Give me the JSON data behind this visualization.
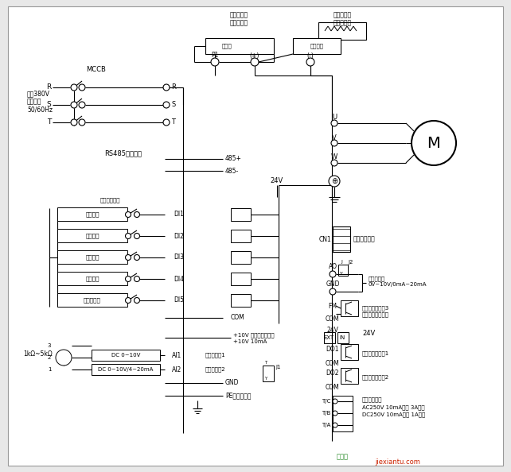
{
  "bg_color": "#e8e8e8",
  "white": "#ffffff",
  "black": "#000000",
  "gray": "#999999",
  "light_gray": "#f0f0f0",
  "red": "#cc0000",
  "border_gray": "#bbbbbb",
  "labels": {
    "mccb": "MCCB",
    "three_phase": "三相380V\n输入电源\n50/60Hz",
    "r": "R",
    "s": "S",
    "t": "T",
    "rs485": "RS485通讯接口",
    "485p": "485+",
    "485n": "485-",
    "24v": "24V",
    "factory": "（出厂默认）",
    "fwd_run": "正转运行",
    "rev_run": "反转运行",
    "fwd_jog": "正转点动",
    "free_stop": "自由停车",
    "hi_pulse": "高速脉冲入",
    "di1": "DI1",
    "di2": "DI2",
    "di3": "DI3",
    "di4": "DI4",
    "di5": "DI5",
    "com": "COM",
    "plus10v_a": "+10V 频率设定用电源",
    "plus10v_b": "+10V 10mA",
    "dc010v": "DC 0~10V",
    "ai1_label": "AI1 模拟量输入1",
    "dc010v_ma": "DC 0~10V/4~20mA",
    "ai2_label": "AI2 模拟量输入2",
    "gnd": "GND",
    "pe": "PE（接机壳）",
    "res_val": "1kΩ~5kΩ",
    "resistor_top": "制动电阻器\n（选购件）",
    "dc_reactor": "直流电抗器\n（选购件）",
    "short_bar": "短路片",
    "brake_unit": "制动单元",
    "p1": "P1",
    "plus": "(+)",
    "minus": "(-)",
    "u": "U",
    "v": "V",
    "w": "W",
    "motor": "M",
    "cn1": "CN1",
    "ext_kbd": "外引键盘接口",
    "ao": "AO",
    "gnd2": "GND",
    "analog_out": "模拟量输出\n0V~10V/0mA~20mA",
    "fm": "FM",
    "oc3_a": "开路集电极输出3",
    "oc3_b": "（高速脉冲输出）",
    "com2": "COM",
    "ext": "EXT",
    "in": "IN",
    "v24_label": "24V",
    "do1": "DO1",
    "com3": "COM",
    "oc1": "开路集电极输出1",
    "do2": "DO2",
    "com4": "COM",
    "oc2": "开路集电极输出2",
    "tc": "T/C",
    "tb": "T/B",
    "ta": "T/A",
    "relay_a": "故障继点输出",
    "relay_b": "AC250V 10mA以上 3A以下",
    "relay_c": "DC250V 10mA以上 1A以下",
    "j1": "J1",
    "j2": "J2",
    "watermark": "jiexiantu.com"
  }
}
